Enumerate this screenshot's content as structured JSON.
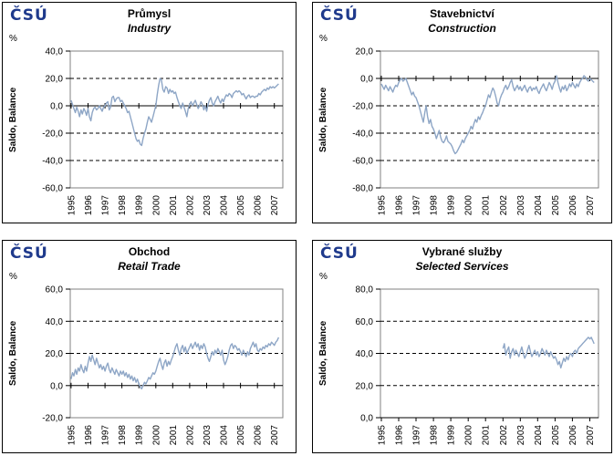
{
  "logo": "ČSÚ",
  "colors": {
    "logo_navy": "#1f3a8c",
    "line_blue": "#8ea6c6",
    "plot_border_gray": "#808080",
    "grid_black": "#000000"
  },
  "chart_data": [
    {
      "type": "line",
      "title": "Průmysl",
      "subtitle": "Industry",
      "unit": "%",
      "ylabel": "Saldo, Balance",
      "x_start": 1995,
      "x_step_months": 1,
      "x_domain": [
        1994.95,
        2007.5
      ],
      "xticks": [
        1995,
        1996,
        1997,
        1998,
        1999,
        2000,
        2001,
        2002,
        2003,
        2004,
        2005,
        2006,
        2007
      ],
      "ylim": [
        -60,
        40
      ],
      "yticks": [
        40,
        20,
        0,
        -20,
        -40,
        -60
      ],
      "grid": true,
      "legend": "none",
      "values": [
        4,
        1,
        -2,
        -5,
        -1,
        -4,
        -8,
        -3,
        -6,
        -2,
        -4,
        -7,
        -2,
        -8,
        -11,
        -5,
        -2,
        -1,
        -3,
        -2,
        0,
        -2,
        -4,
        -1,
        0,
        2,
        3,
        -3,
        -1,
        6,
        7,
        3,
        5,
        6,
        6,
        3,
        4,
        2,
        0,
        -2,
        -5,
        -4,
        -8,
        -12,
        -16,
        -20,
        -24,
        -26,
        -25,
        -28,
        -29,
        -24,
        -20,
        -17,
        -12,
        -8,
        -10,
        -12,
        -8,
        -4,
        0,
        8,
        15,
        20,
        19,
        12,
        10,
        14,
        13,
        9,
        12,
        10,
        11,
        9,
        10,
        6,
        3,
        0,
        -2,
        2,
        -1,
        -4,
        -8,
        -2,
        1,
        3,
        0,
        2,
        4,
        1,
        -2,
        0,
        3,
        1,
        -3,
        0,
        -4,
        1,
        4,
        6,
        2,
        0,
        3,
        5,
        7,
        4,
        2,
        5,
        3,
        6,
        8,
        7,
        9,
        8,
        6,
        9,
        10,
        11,
        10,
        11,
        10,
        8,
        9,
        7,
        5,
        7,
        8,
        6,
        7,
        7,
        6,
        7,
        7,
        9,
        8,
        10,
        11,
        12,
        11,
        13,
        12,
        14,
        13,
        14,
        13,
        14,
        15,
        16
      ]
    },
    {
      "type": "line",
      "title": "Stavebnictví",
      "subtitle": "Construction",
      "unit": "%",
      "ylabel": "Saldo, Balance",
      "x_start": 1995,
      "x_step_months": 1,
      "x_domain": [
        1994.95,
        2007.5
      ],
      "xticks": [
        1995,
        1996,
        1997,
        1998,
        1999,
        2000,
        2001,
        2002,
        2003,
        2004,
        2005,
        2006,
        2007
      ],
      "ylim": [
        -80,
        20
      ],
      "yticks": [
        20,
        0,
        -20,
        -40,
        -60,
        -80
      ],
      "grid": true,
      "legend": "none",
      "values": [
        -4,
        -6,
        -8,
        -5,
        -7,
        -9,
        -6,
        -8,
        -10,
        -7,
        -5,
        -6,
        -3,
        -1,
        0,
        -2,
        -1,
        0,
        -3,
        -6,
        -9,
        -12,
        -10,
        -13,
        -14,
        -17,
        -20,
        -24,
        -28,
        -32,
        -25,
        -20,
        -28,
        -33,
        -30,
        -35,
        -37,
        -40,
        -44,
        -41,
        -38,
        -43,
        -46,
        -47,
        -45,
        -42,
        -46,
        -47,
        -48,
        -50,
        -53,
        -55,
        -54,
        -52,
        -50,
        -48,
        -45,
        -47,
        -44,
        -42,
        -40,
        -38,
        -35,
        -37,
        -33,
        -30,
        -32,
        -28,
        -30,
        -27,
        -25,
        -22,
        -20,
        -16,
        -12,
        -14,
        -10,
        -7,
        -9,
        -13,
        -18,
        -20,
        -15,
        -12,
        -10,
        -7,
        -5,
        -8,
        -6,
        -3,
        -1,
        -6,
        -9,
        -7,
        -5,
        -8,
        -6,
        -9,
        -7,
        -5,
        -8,
        -10,
        -7,
        -6,
        -9,
        -7,
        -8,
        -6,
        -9,
        -11,
        -8,
        -6,
        -4,
        -7,
        -9,
        -6,
        -3,
        -5,
        -8,
        -4,
        -2,
        2,
        -3,
        -7,
        -10,
        -6,
        -8,
        -5,
        -9,
        -7,
        -4,
        -6,
        -3,
        -5,
        -7,
        -4,
        -6,
        -3,
        -1,
        0,
        2,
        1,
        -1,
        -2,
        0,
        -1,
        -2,
        -3
      ]
    },
    {
      "type": "line",
      "title": "Obchod",
      "subtitle": "Retail Trade",
      "unit": "%",
      "ylabel": "Saldo, Balance",
      "x_start": 1995,
      "x_step_months": 1,
      "x_domain": [
        1994.95,
        2007.5
      ],
      "xticks": [
        1995,
        1996,
        1997,
        1998,
        1999,
        2000,
        2001,
        2002,
        2003,
        2004,
        2005,
        2006,
        2007
      ],
      "ylim": [
        -20,
        60
      ],
      "yticks": [
        60,
        40,
        20,
        0,
        -20
      ],
      "grid": true,
      "legend": "none",
      "values": [
        4,
        8,
        6,
        10,
        7,
        11,
        9,
        13,
        10,
        8,
        12,
        9,
        14,
        18,
        15,
        19,
        16,
        13,
        17,
        14,
        11,
        13,
        10,
        12,
        9,
        12,
        14,
        10,
        8,
        11,
        9,
        7,
        10,
        8,
        6,
        9,
        7,
        9,
        6,
        8,
        5,
        7,
        4,
        6,
        3,
        5,
        2,
        4,
        1,
        -1,
        -2,
        0,
        2,
        1,
        3,
        5,
        4,
        6,
        8,
        7,
        9,
        12,
        15,
        17,
        13,
        10,
        14,
        16,
        12,
        15,
        13,
        16,
        18,
        21,
        24,
        26,
        22,
        19,
        23,
        25,
        21,
        24,
        20,
        22,
        24,
        26,
        23,
        25,
        27,
        24,
        26,
        22,
        25,
        23,
        26,
        24,
        20,
        17,
        15,
        18,
        21,
        19,
        22,
        20,
        23,
        21,
        19,
        22,
        16,
        13,
        15,
        18,
        22,
        25,
        26,
        23,
        25,
        24,
        22,
        23,
        21,
        19,
        22,
        20,
        18,
        21,
        19,
        23,
        25,
        27,
        24,
        26,
        22,
        21,
        23,
        22,
        24,
        23,
        25,
        24,
        26,
        25,
        27,
        26,
        25,
        27,
        28,
        30
      ]
    },
    {
      "type": "line",
      "title": "Vybrané služby",
      "subtitle": "Selected Services",
      "unit": "%",
      "ylabel": "Saldo, Balance",
      "x_start": 2002,
      "x_step_months": 1,
      "x_domain": [
        1994.95,
        2007.5
      ],
      "xticks": [
        1995,
        1996,
        1997,
        1998,
        1999,
        2000,
        2001,
        2002,
        2003,
        2004,
        2005,
        2006,
        2007
      ],
      "ylim": [
        0,
        80
      ],
      "yticks": [
        80,
        60,
        40,
        20,
        0
      ],
      "grid": true,
      "legend": "none",
      "values": [
        43,
        46,
        39,
        42,
        44,
        37,
        41,
        43,
        39,
        42,
        40,
        38,
        41,
        44,
        40,
        37,
        39,
        42,
        45,
        41,
        38,
        40,
        42,
        39,
        41,
        38,
        40,
        43,
        41,
        39,
        42,
        40,
        38,
        41,
        39,
        37,
        38,
        36,
        33,
        35,
        31,
        34,
        37,
        35,
        38,
        36,
        39,
        40,
        38,
        41,
        42,
        40,
        43,
        44,
        45,
        46,
        47,
        48,
        49,
        50,
        49,
        50,
        48,
        46
      ]
    }
  ]
}
